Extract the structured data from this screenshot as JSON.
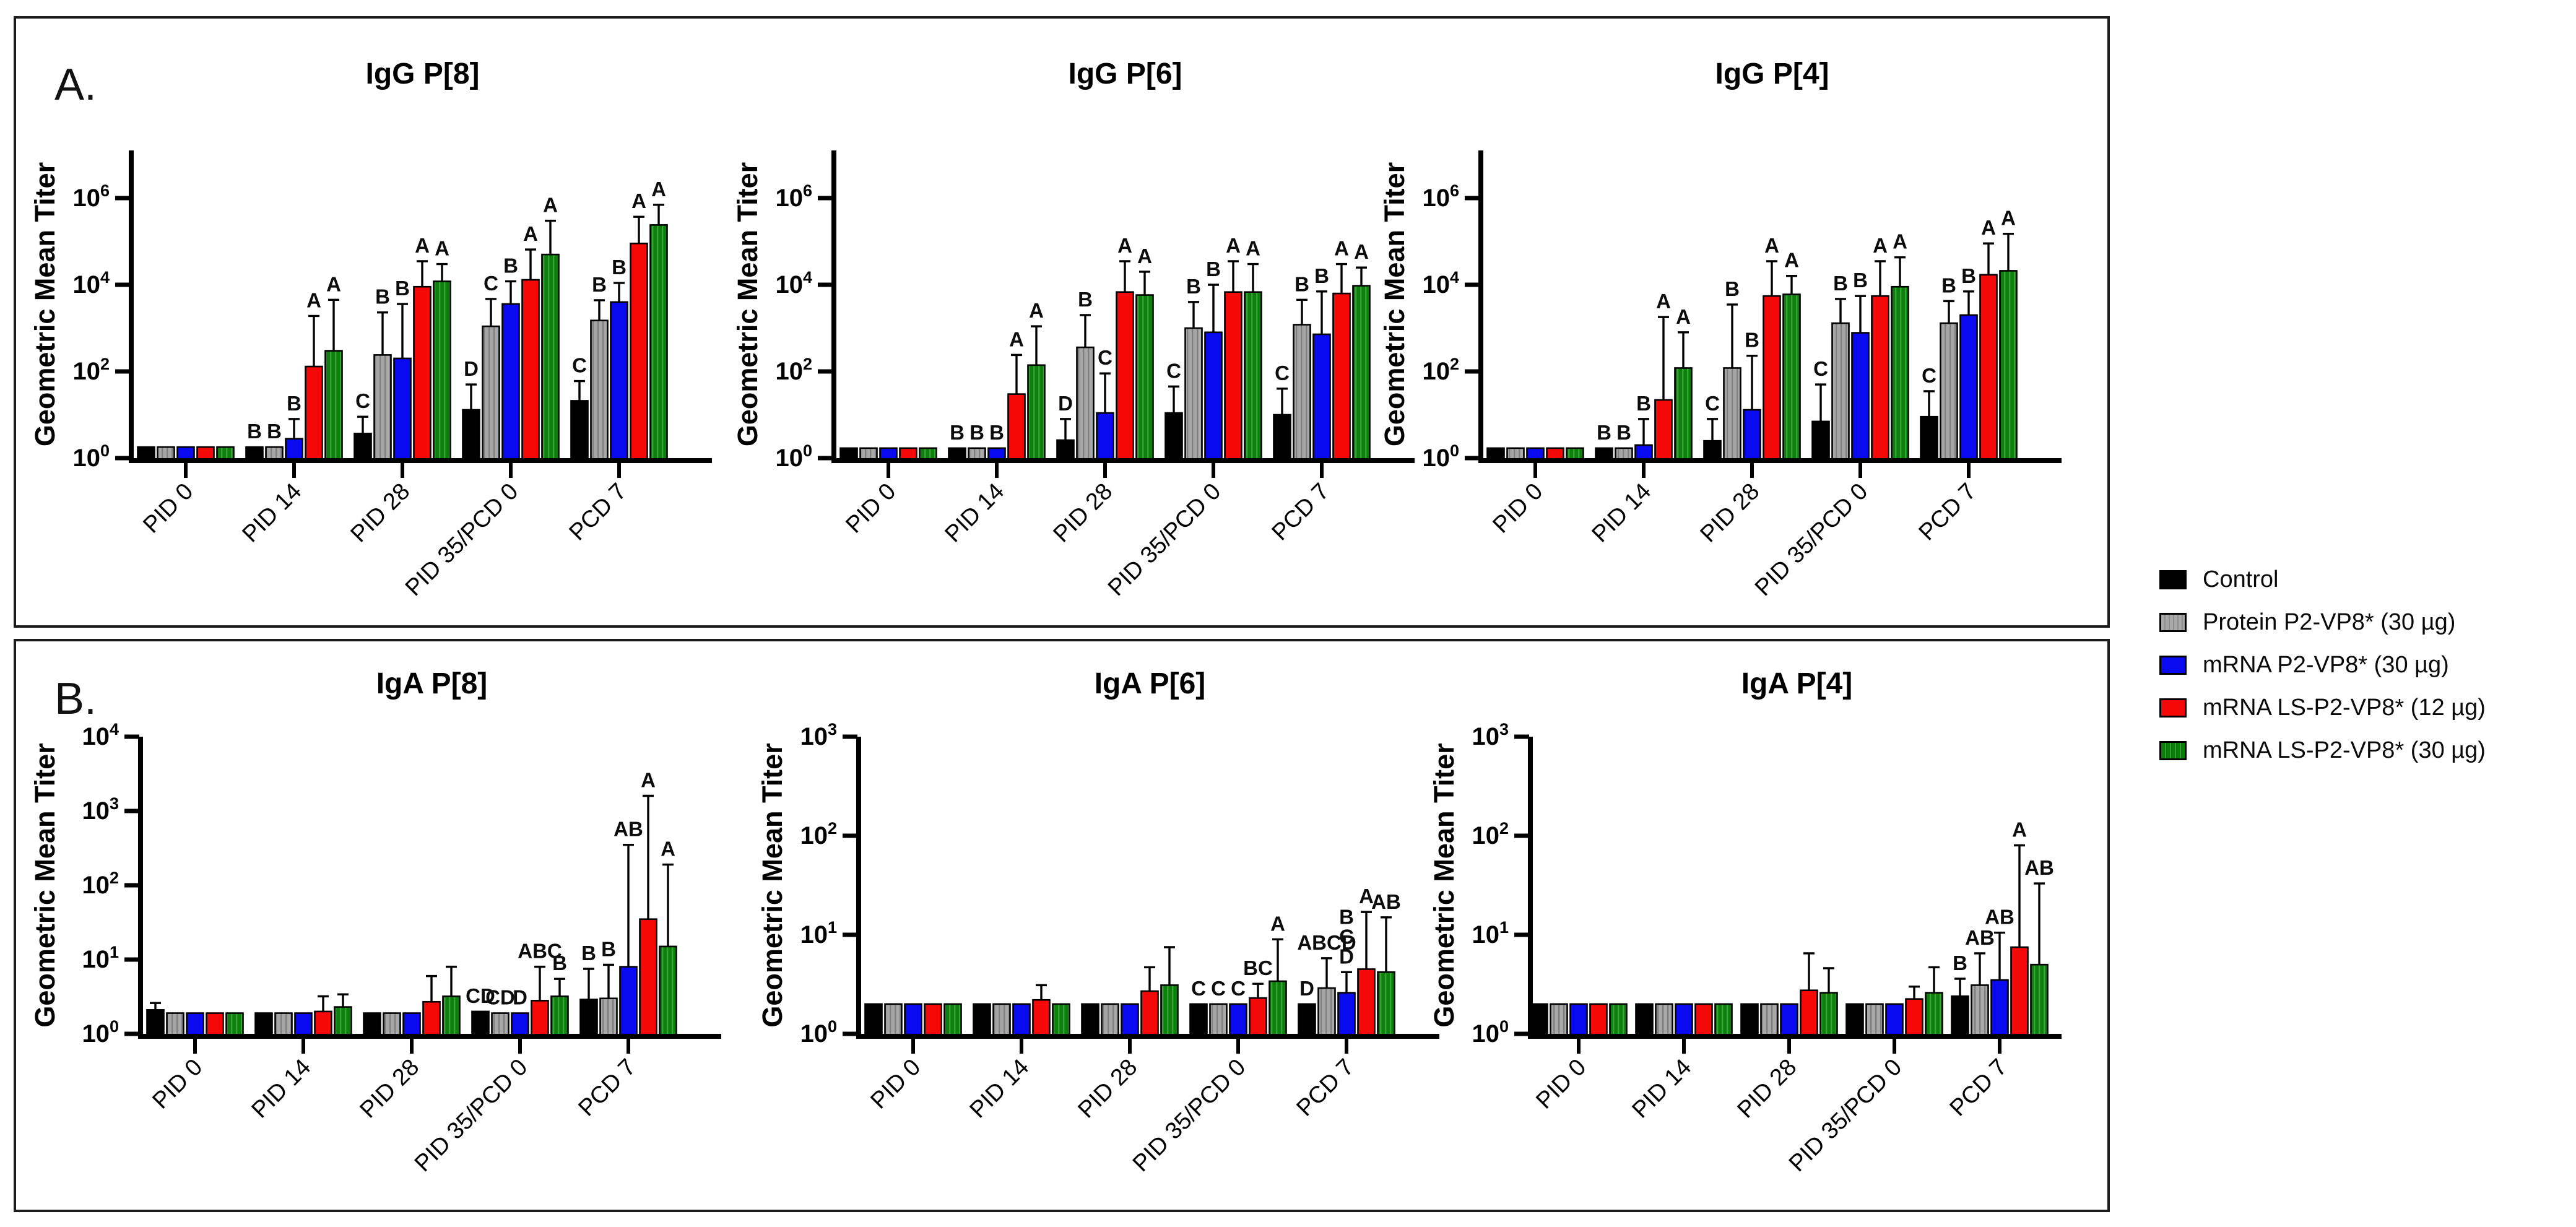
{
  "panels": {
    "a_label": "A.",
    "b_label": "B."
  },
  "legend": {
    "items": [
      {
        "label": "Control",
        "color": "#000000",
        "pattern": "solid"
      },
      {
        "label": "Protein P2-VP8* (30 µg)",
        "color": "#a8a8a8",
        "pattern": "hatch"
      },
      {
        "label": "mRNA P2-VP8* (30 µg)",
        "color": "#0a0af0",
        "pattern": "solid"
      },
      {
        "label": "mRNA LS-P2-VP8* (12 µg)",
        "color": "#f50808",
        "pattern": "solid"
      },
      {
        "label": "mRNA LS-P2-VP8* (30 µg)",
        "color": "#0c7f0c",
        "pattern": "stripe"
      }
    ]
  },
  "chart_data": [
    {
      "id": "igg-p8",
      "panel": "A",
      "type": "bar",
      "title": "IgG P[8]",
      "ylabel": "Geometric Mean Titer",
      "yscale": "log",
      "ylim": [
        1,
        10000000
      ],
      "y_tick_exponents": [
        0,
        2,
        4,
        6
      ],
      "grid": false,
      "categories": [
        "PID 0",
        "PID 14",
        "PID 28",
        "PID 35/PCD 0",
        "PCD 7"
      ],
      "series_names": [
        "Control",
        "Protein P2-VP8* (30 µg)",
        "mRNA P2-VP8* (30 µg)",
        "mRNA LS-P2-VP8* (12 µg)",
        "mRNA LS-P2-VP8* (30 µg)"
      ],
      "values": [
        [
          1.8,
          1.8,
          1.8,
          1.8,
          1.8
        ],
        [
          1.8,
          1.8,
          2.8,
          130,
          300
        ],
        [
          3.7,
          240,
          200,
          9000,
          12000
        ],
        [
          13,
          1100,
          3600,
          13000,
          50000
        ],
        [
          21,
          1500,
          4000,
          90000,
          240000
        ]
      ],
      "errors_upper": [
        [
          null,
          null,
          null,
          null,
          null
        ],
        [
          null,
          null,
          8,
          1900,
          4500
        ],
        [
          9,
          2300,
          3600,
          35000,
          30000
        ],
        [
          50,
          4700,
          12000,
          65000,
          300000
        ],
        [
          60,
          4400,
          11000,
          370000,
          700000
        ]
      ],
      "sig_letters": [
        [
          "",
          "",
          "",
          "",
          ""
        ],
        [
          "B",
          "B",
          "B",
          "A",
          "A"
        ],
        [
          "C",
          "B",
          "B",
          "A",
          "A"
        ],
        [
          "D",
          "C",
          "B",
          "A",
          "A"
        ],
        [
          "C",
          "B",
          "B",
          "A",
          "A"
        ]
      ]
    },
    {
      "id": "igg-p6",
      "panel": "A",
      "type": "bar",
      "title": "IgG P[6]",
      "ylabel": "Geometric Mean Titer",
      "yscale": "log",
      "ylim": [
        1,
        10000000
      ],
      "y_tick_exponents": [
        0,
        2,
        4,
        6
      ],
      "grid": false,
      "categories": [
        "PID 0",
        "PID 14",
        "PID 28",
        "PID 35/PCD 0",
        "PCD 7"
      ],
      "series_names": [
        "Control",
        "Protein P2-VP8* (30 µg)",
        "mRNA P2-VP8* (30 µg)",
        "mRNA LS-P2-VP8* (12 µg)",
        "mRNA LS-P2-VP8* (30 µg)"
      ],
      "values": [
        [
          1.7,
          1.7,
          1.7,
          1.7,
          1.7
        ],
        [
          1.7,
          1.7,
          1.7,
          30,
          140
        ],
        [
          2.6,
          360,
          11,
          6800,
          5800
        ],
        [
          11,
          1000,
          800,
          6800,
          6800
        ],
        [
          10,
          1200,
          720,
          6300,
          9500
        ]
      ],
      "errors_upper": [
        [
          null,
          null,
          null,
          null,
          null
        ],
        [
          null,
          null,
          null,
          240,
          1100
        ],
        [
          8,
          2000,
          90,
          35000,
          20000
        ],
        [
          45,
          4000,
          10000,
          35000,
          30000
        ],
        [
          40,
          4500,
          7000,
          30000,
          25000
        ]
      ],
      "sig_letters": [
        [
          "",
          "",
          "",
          "",
          ""
        ],
        [
          "B",
          "B",
          "B",
          "A",
          "A"
        ],
        [
          "D",
          "B",
          "C",
          "A",
          "A"
        ],
        [
          "C",
          "B",
          "B",
          "A",
          "A"
        ],
        [
          "C",
          "B",
          "B",
          "A",
          "A"
        ]
      ]
    },
    {
      "id": "igg-p4",
      "panel": "A",
      "type": "bar",
      "title": "IgG P[4]",
      "ylabel": "Geometric Mean Titer",
      "yscale": "log",
      "ylim": [
        1,
        10000000
      ],
      "y_tick_exponents": [
        0,
        2,
        4,
        6
      ],
      "grid": false,
      "categories": [
        "PID 0",
        "PID 14",
        "PID 28",
        "PID 35/PCD 0",
        "PCD 7"
      ],
      "series_names": [
        "Control",
        "Protein P2-VP8* (30 µg)",
        "mRNA P2-VP8* (30 µg)",
        "mRNA LS-P2-VP8* (12 µg)",
        "mRNA LS-P2-VP8* (30 µg)"
      ],
      "values": [
        [
          1.7,
          1.7,
          1.7,
          1.7,
          1.7
        ],
        [
          1.7,
          1.7,
          2.0,
          22,
          120
        ],
        [
          2.5,
          120,
          13,
          5500,
          6000
        ],
        [
          7,
          1300,
          780,
          5500,
          9000
        ],
        [
          9,
          1300,
          2000,
          17000,
          21000
        ]
      ],
      "errors_upper": [
        [
          null,
          null,
          null,
          null,
          null
        ],
        [
          null,
          null,
          8,
          1800,
          800
        ],
        [
          8,
          3500,
          230,
          35000,
          16000
        ],
        [
          50,
          4700,
          5500,
          35000,
          43000
        ],
        [
          35,
          4200,
          7000,
          90000,
          150000
        ]
      ],
      "sig_letters": [
        [
          "",
          "",
          "",
          "",
          ""
        ],
        [
          "B",
          "B",
          "B",
          "A",
          "A"
        ],
        [
          "C",
          "B",
          "B",
          "A",
          "A"
        ],
        [
          "C",
          "B",
          "B",
          "A",
          "A"
        ],
        [
          "C",
          "B",
          "B",
          "A",
          "A"
        ]
      ]
    },
    {
      "id": "iga-p8",
      "panel": "B",
      "type": "bar",
      "title": "IgA P[8]",
      "ylabel": "Geometric Mean Titer",
      "yscale": "log",
      "ylim": [
        1,
        10000
      ],
      "y_tick_exponents": [
        0,
        1,
        2,
        3,
        4
      ],
      "grid": false,
      "categories": [
        "PID 0",
        "PID 14",
        "PID 28",
        "PID 35/PCD 0",
        "PCD 7"
      ],
      "series_names": [
        "Control",
        "Protein P2-VP8* (30 µg)",
        "mRNA P2-VP8* (30 µg)",
        "mRNA LS-P2-VP8* (12 µg)",
        "mRNA LS-P2-VP8* (30 µg)"
      ],
      "values": [
        [
          2.1,
          1.9,
          1.9,
          1.9,
          1.9
        ],
        [
          1.9,
          1.9,
          1.9,
          2.0,
          2.3
        ],
        [
          1.9,
          1.9,
          1.9,
          2.7,
          3.2
        ],
        [
          2.0,
          1.9,
          1.9,
          2.8,
          3.2
        ],
        [
          2.9,
          3.0,
          8,
          35,
          15
        ]
      ],
      "errors_upper": [
        [
          2.6,
          null,
          null,
          null,
          null
        ],
        [
          null,
          null,
          null,
          3.2,
          3.4
        ],
        [
          null,
          null,
          null,
          6,
          8
        ],
        [
          null,
          null,
          null,
          8,
          5.5
        ],
        [
          7.5,
          8.5,
          350,
          1600,
          190
        ]
      ],
      "sig_letters": [
        [
          "",
          "",
          "",
          "",
          ""
        ],
        [
          "",
          "",
          "",
          "",
          ""
        ],
        [
          "",
          "",
          "",
          "",
          ""
        ],
        [
          "CD",
          "CD",
          "D",
          "ABC",
          "B"
        ],
        [
          "B",
          "B",
          "AB",
          "A",
          "A"
        ]
      ]
    },
    {
      "id": "iga-p6",
      "panel": "B",
      "type": "bar",
      "title": "IgA P[6]",
      "ylabel": "Geometric Mean Titer",
      "yscale": "log",
      "ylim": [
        1,
        1000
      ],
      "y_tick_exponents": [
        0,
        1,
        2,
        3
      ],
      "grid": false,
      "categories": [
        "PID 0",
        "PID 14",
        "PID 28",
        "PID 35/PCD 0",
        "PCD 7"
      ],
      "series_names": [
        "Control",
        "Protein P2-VP8* (30 µg)",
        "mRNA P2-VP8* (30 µg)",
        "mRNA LS-P2-VP8* (12 µg)",
        "mRNA LS-P2-VP8* (30 µg)"
      ],
      "values": [
        [
          2.0,
          2.0,
          2.0,
          2.0,
          2.0
        ],
        [
          2.0,
          2.0,
          2.0,
          2.2,
          2.0
        ],
        [
          2.0,
          2.0,
          2.0,
          2.7,
          3.1
        ],
        [
          2.0,
          2.0,
          2.0,
          2.3,
          3.4
        ],
        [
          2.0,
          2.9,
          2.6,
          4.5,
          4.2
        ]
      ],
      "errors_upper": [
        [
          null,
          null,
          null,
          null,
          null
        ],
        [
          null,
          null,
          null,
          3.1,
          null
        ],
        [
          null,
          null,
          null,
          4.7,
          7.5
        ],
        [
          null,
          null,
          null,
          3.2,
          9
        ],
        [
          null,
          5.8,
          4.2,
          17,
          15
        ]
      ],
      "sig_letters": [
        [
          "",
          "",
          "",
          "",
          ""
        ],
        [
          "",
          "",
          "",
          "",
          ""
        ],
        [
          "",
          "",
          "",
          "",
          ""
        ],
        [
          "C",
          "C",
          "C",
          "BC",
          "A"
        ],
        [
          "D",
          "ABCD",
          "B|C|D",
          "A",
          "AB"
        ]
      ]
    },
    {
      "id": "iga-p4",
      "panel": "B",
      "type": "bar",
      "title": "IgA P[4]",
      "ylabel": "Geometric Mean Titer",
      "yscale": "log",
      "ylim": [
        1,
        1000
      ],
      "y_tick_exponents": [
        0,
        1,
        2,
        3
      ],
      "grid": false,
      "categories": [
        "PID 0",
        "PID 14",
        "PID 28",
        "PID 35/PCD 0",
        "PCD 7"
      ],
      "series_names": [
        "Control",
        "Protein P2-VP8* (30 µg)",
        "mRNA P2-VP8* (30 µg)",
        "mRNA LS-P2-VP8* (12 µg)",
        "mRNA LS-P2-VP8* (30 µg)"
      ],
      "values": [
        [
          2.0,
          2.0,
          2.0,
          2.0,
          2.0
        ],
        [
          2.0,
          2.0,
          2.0,
          2.0,
          2.0
        ],
        [
          2.0,
          2.0,
          2.0,
          2.75,
          2.6
        ],
        [
          2.0,
          2.0,
          2.0,
          2.25,
          2.6
        ],
        [
          2.4,
          3.1,
          3.5,
          7.5,
          5.0
        ]
      ],
      "errors_upper": [
        [
          null,
          null,
          null,
          null,
          null
        ],
        [
          null,
          null,
          null,
          null,
          null
        ],
        [
          null,
          null,
          null,
          6.5,
          4.6
        ],
        [
          null,
          null,
          null,
          3.0,
          4.7
        ],
        [
          3.6,
          6.5,
          10.5,
          80,
          33
        ]
      ],
      "sig_letters": [
        [
          "",
          "",
          "",
          "",
          ""
        ],
        [
          "",
          "",
          "",
          "",
          ""
        ],
        [
          "",
          "",
          "",
          "",
          ""
        ],
        [
          "",
          "",
          "",
          "",
          ""
        ],
        [
          "B",
          "AB",
          "AB",
          "A",
          "AB"
        ]
      ]
    }
  ]
}
